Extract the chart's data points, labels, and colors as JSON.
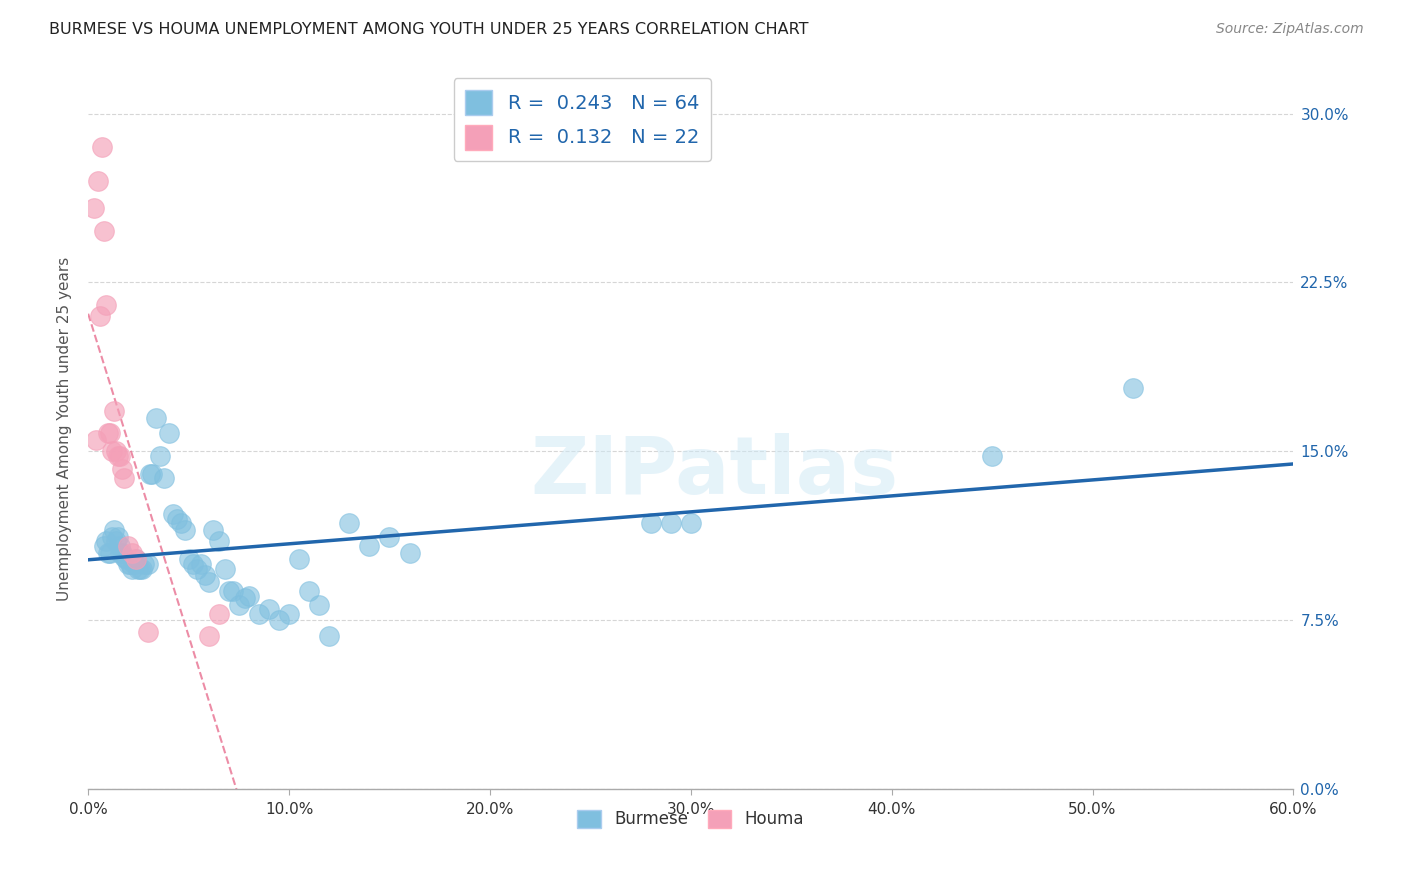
{
  "title": "BURMESE VS HOUMA UNEMPLOYMENT AMONG YOUTH UNDER 25 YEARS CORRELATION CHART",
  "source": "Source: ZipAtlas.com",
  "ylabel": "Unemployment Among Youth under 25 years",
  "xlim": [
    0.0,
    0.6
  ],
  "ylim": [
    0.0,
    0.32
  ],
  "xticks": [
    0.0,
    0.1,
    0.2,
    0.3,
    0.4,
    0.5,
    0.6
  ],
  "xticklabels": [
    "0.0%",
    "10.0%",
    "20.0%",
    "30.0%",
    "40.0%",
    "50.0%",
    "60.0%"
  ],
  "yticks": [
    0.0,
    0.075,
    0.15,
    0.225,
    0.3
  ],
  "ytick_labels_right": [
    "0.0%",
    "7.5%",
    "15.0%",
    "22.5%",
    "30.0%"
  ],
  "burmese_R": "0.243",
  "burmese_N": "64",
  "houma_R": "0.132",
  "houma_N": "22",
  "burmese_color": "#7fbfdf",
  "houma_color": "#f4a0b8",
  "trend_blue_color": "#2166ac",
  "trend_pink_color": "#e87090",
  "watermark": "ZIPatlas",
  "burmese_x": [
    0.008,
    0.009,
    0.01,
    0.011,
    0.012,
    0.013,
    0.014,
    0.015,
    0.016,
    0.016,
    0.017,
    0.018,
    0.019,
    0.02,
    0.021,
    0.022,
    0.023,
    0.024,
    0.025,
    0.026,
    0.027,
    0.028,
    0.03,
    0.031,
    0.032,
    0.034,
    0.036,
    0.038,
    0.04,
    0.042,
    0.044,
    0.046,
    0.048,
    0.05,
    0.052,
    0.054,
    0.056,
    0.058,
    0.06,
    0.062,
    0.065,
    0.068,
    0.07,
    0.072,
    0.075,
    0.078,
    0.08,
    0.085,
    0.09,
    0.095,
    0.1,
    0.105,
    0.11,
    0.115,
    0.12,
    0.13,
    0.14,
    0.15,
    0.16,
    0.28,
    0.29,
    0.3,
    0.45,
    0.52
  ],
  "burmese_y": [
    0.108,
    0.11,
    0.105,
    0.105,
    0.112,
    0.115,
    0.11,
    0.112,
    0.105,
    0.108,
    0.105,
    0.103,
    0.102,
    0.1,
    0.1,
    0.098,
    0.1,
    0.102,
    0.098,
    0.098,
    0.098,
    0.1,
    0.1,
    0.14,
    0.14,
    0.165,
    0.148,
    0.138,
    0.158,
    0.122,
    0.12,
    0.118,
    0.115,
    0.102,
    0.1,
    0.098,
    0.1,
    0.095,
    0.092,
    0.115,
    0.11,
    0.098,
    0.088,
    0.088,
    0.082,
    0.085,
    0.086,
    0.078,
    0.08,
    0.075,
    0.078,
    0.102,
    0.088,
    0.082,
    0.068,
    0.118,
    0.108,
    0.112,
    0.105,
    0.118,
    0.118,
    0.118,
    0.148,
    0.178
  ],
  "houma_x": [
    0.003,
    0.004,
    0.005,
    0.006,
    0.007,
    0.008,
    0.009,
    0.01,
    0.011,
    0.012,
    0.013,
    0.014,
    0.015,
    0.016,
    0.017,
    0.018,
    0.02,
    0.022,
    0.024,
    0.03,
    0.06,
    0.065
  ],
  "houma_y": [
    0.258,
    0.155,
    0.27,
    0.21,
    0.285,
    0.248,
    0.215,
    0.158,
    0.158,
    0.15,
    0.168,
    0.15,
    0.148,
    0.148,
    0.142,
    0.138,
    0.108,
    0.105,
    0.102,
    0.07,
    0.068,
    0.078
  ]
}
